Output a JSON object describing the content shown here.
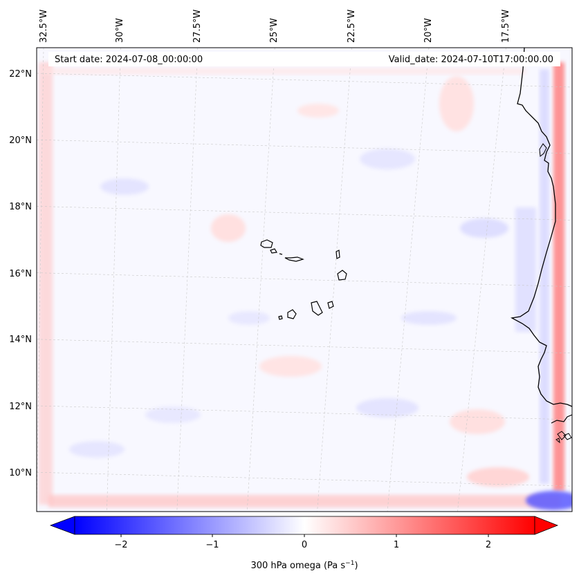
{
  "map": {
    "start_date_text": "Start date: 2024-07-08_00:00:00",
    "valid_date_text": "Valid_date: 2024-07-10T17:00:00.00",
    "longitude_labels": [
      "32.5°W",
      "30°W",
      "27.5°W",
      "25°W",
      "22.5°W",
      "20°W",
      "17.5°W"
    ],
    "latitude_labels": [
      "22°N",
      "20°N",
      "18°N",
      "16°N",
      "14°N",
      "12°N",
      "10°N"
    ],
    "longitudes": [
      -32.5,
      -30,
      -27.5,
      -25,
      -22.5,
      -20,
      -17.5
    ],
    "latitudes": [
      22,
      20,
      18,
      16,
      14,
      12,
      10
    ],
    "field": "300 hPa omega",
    "gridlines": true
  },
  "colorbar": {
    "label": "300 hPa omega (Pa s",
    "label_superscript": "−1",
    "label_suffix": ")",
    "tick_labels": [
      "−2",
      "−1",
      "0",
      "1",
      "2"
    ],
    "tick_values": [
      -2,
      -1,
      0,
      1,
      2
    ],
    "range": [
      -2.5,
      2.5
    ],
    "extend": "both",
    "colormap": "bwr",
    "color_min": "#0000ff",
    "color_mid": "#ffffff",
    "color_max": "#ff0000"
  },
  "colors": {
    "coastline": "#000000",
    "gridline": "#c8c8c8",
    "background_field": "#f8f8ff"
  }
}
